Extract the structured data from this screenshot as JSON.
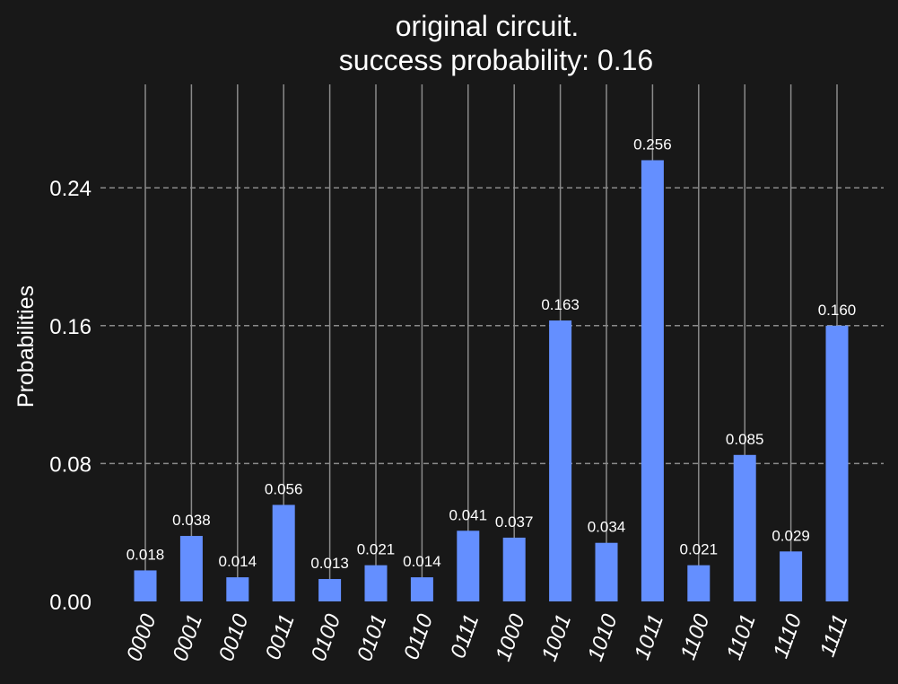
{
  "chart_data": {
    "type": "bar",
    "title": [
      "original circuit.",
      "success probability: 0.16"
    ],
    "xlabel": "",
    "ylabel": "Probabilities",
    "ylim": [
      0,
      0.3
    ],
    "yticks": [
      0.0,
      0.08,
      0.16,
      0.24
    ],
    "ytick_labels": [
      "0.00",
      "0.08",
      "0.16",
      "0.24"
    ],
    "grid": {
      "y": "dashed",
      "x": "solid"
    },
    "categories": [
      "0000",
      "0001",
      "0010",
      "0011",
      "0100",
      "0101",
      "0110",
      "0111",
      "1000",
      "1001",
      "1010",
      "1011",
      "1100",
      "1101",
      "1110",
      "1111"
    ],
    "values": [
      0.018,
      0.038,
      0.014,
      0.056,
      0.013,
      0.021,
      0.014,
      0.041,
      0.037,
      0.163,
      0.034,
      0.256,
      0.021,
      0.085,
      0.029,
      0.16
    ],
    "value_labels": [
      "0.018",
      "0.038",
      "0.014",
      "0.056",
      "0.013",
      "0.021",
      "0.014",
      "0.041",
      "0.037",
      "0.163",
      "0.034",
      "0.256",
      "0.021",
      "0.085",
      "0.029",
      "0.160"
    ],
    "colors": {
      "background": "#181818",
      "bar": "#648fff",
      "text": "#ffffff",
      "grid": "#8a8a8a"
    }
  }
}
